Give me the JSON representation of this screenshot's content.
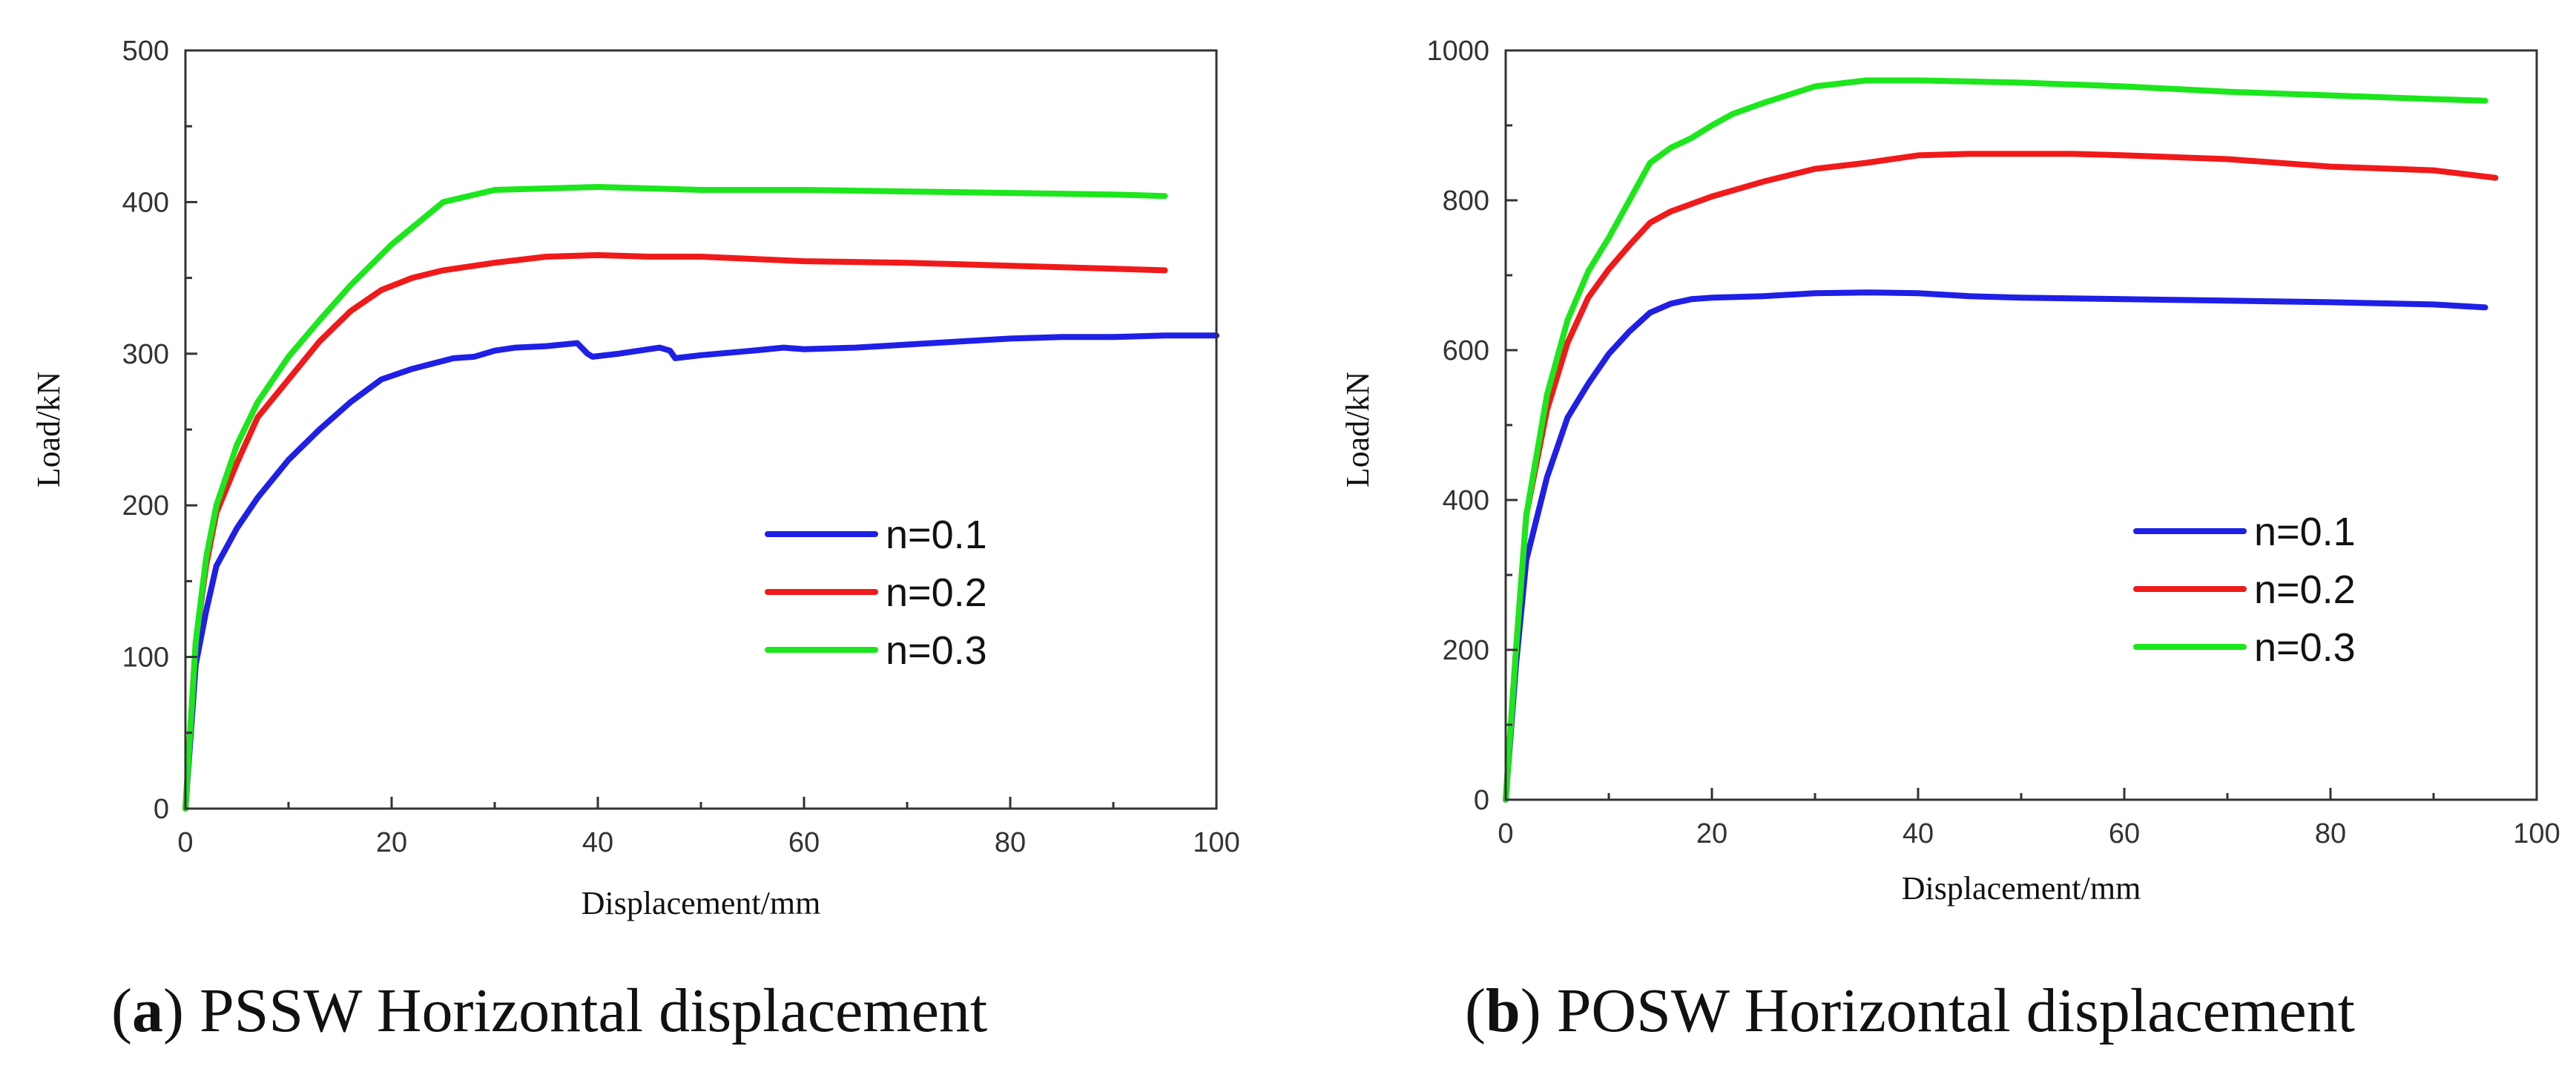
{
  "chart_data": [
    {
      "type": "line",
      "caption_letter": "a",
      "caption_text": "PSSW Horizontal displacement",
      "xlabel": "Displacement/mm",
      "ylabel": "Load/kN",
      "xlim": [
        0,
        100
      ],
      "ylim": [
        0,
        500
      ],
      "xticks": [
        0,
        20,
        40,
        60,
        80,
        100
      ],
      "yticks": [
        0,
        100,
        200,
        300,
        400,
        500
      ],
      "xtick_labels": [
        "0",
        "20",
        "40",
        "60",
        "80",
        "100"
      ],
      "ytick_labels": [
        "0",
        "100",
        "200",
        "300",
        "400",
        "500"
      ],
      "legend_position": "lower-right",
      "series": [
        {
          "name": "n=0.1",
          "color": "#1f1fe6",
          "x": [
            0,
            1,
            2,
            3,
            5,
            7,
            10,
            13,
            16,
            19,
            22,
            26,
            28,
            30,
            32,
            35,
            38,
            39,
            39.5,
            42,
            46,
            47,
            47.5,
            50,
            55,
            58,
            60,
            65,
            70,
            75,
            80,
            85,
            90,
            95,
            100
          ],
          "y": [
            0,
            95,
            130,
            160,
            185,
            205,
            230,
            250,
            268,
            283,
            290,
            297,
            298,
            302,
            304,
            305,
            307,
            300,
            298,
            300,
            304,
            302,
            297,
            299,
            302,
            304,
            303,
            304,
            306,
            308,
            310,
            311,
            311,
            312,
            312
          ]
        },
        {
          "name": "n=0.2",
          "color": "#f01a1a",
          "x": [
            0,
            1,
            2,
            3,
            5,
            7,
            10,
            13,
            16,
            19,
            22,
            25,
            30,
            35,
            40,
            45,
            50,
            60,
            70,
            80,
            90,
            95
          ],
          "y": [
            0,
            110,
            160,
            195,
            228,
            258,
            283,
            308,
            328,
            342,
            350,
            355,
            360,
            364,
            365,
            364,
            364,
            361,
            360,
            358,
            356,
            355
          ]
        },
        {
          "name": "n=0.3",
          "color": "#1ce61c",
          "x": [
            0,
            1,
            2,
            3,
            5,
            7,
            10,
            13,
            16,
            20,
            25,
            30,
            35,
            40,
            45,
            50,
            60,
            70,
            80,
            90,
            95
          ],
          "y": [
            0,
            110,
            165,
            200,
            240,
            268,
            298,
            322,
            345,
            372,
            400,
            408,
            409,
            410,
            409,
            408,
            408,
            407,
            406,
            405,
            404
          ]
        }
      ]
    },
    {
      "type": "line",
      "caption_letter": "b",
      "caption_text": "POSW Horizontal displacement",
      "xlabel": "Displacement/mm",
      "ylabel": "Load/kN",
      "xlim": [
        0,
        100
      ],
      "ylim": [
        0,
        1000
      ],
      "xticks": [
        0,
        20,
        40,
        60,
        80,
        100
      ],
      "yticks": [
        0,
        200,
        400,
        600,
        800,
        1000
      ],
      "xtick_labels": [
        "0",
        "20",
        "40",
        "60",
        "80",
        "100"
      ],
      "ytick_labels": [
        "0",
        "200",
        "400",
        "600",
        "800",
        "1000"
      ],
      "legend_position": "lower-right",
      "series": [
        {
          "name": "n=0.1",
          "color": "#1f1fe6",
          "x": [
            0,
            1,
            2,
            4,
            6,
            8,
            10,
            12,
            14,
            16,
            18,
            20,
            25,
            30,
            35,
            40,
            45,
            50,
            60,
            70,
            80,
            90,
            95
          ],
          "y": [
            0,
            180,
            320,
            430,
            510,
            555,
            595,
            625,
            650,
            662,
            668,
            670,
            672,
            676,
            677,
            676,
            672,
            670,
            668,
            666,
            664,
            661,
            657
          ]
        },
        {
          "name": "n=0.2",
          "color": "#f01a1a",
          "x": [
            0,
            1,
            2,
            4,
            6,
            8,
            10,
            12,
            14,
            16,
            18,
            20,
            25,
            30,
            35,
            40,
            45,
            50,
            55,
            60,
            70,
            80,
            90,
            96
          ],
          "y": [
            0,
            200,
            380,
            520,
            610,
            670,
            708,
            740,
            770,
            785,
            795,
            805,
            825,
            842,
            850,
            860,
            862,
            862,
            862,
            860,
            855,
            845,
            840,
            830
          ]
        },
        {
          "name": "n=0.3",
          "color": "#1ce61c",
          "x": [
            0,
            1,
            2,
            4,
            6,
            8,
            10,
            12,
            14,
            16,
            18,
            20,
            22,
            25,
            30,
            35,
            40,
            50,
            60,
            70,
            80,
            90,
            95
          ],
          "y": [
            0,
            200,
            380,
            540,
            640,
            705,
            750,
            800,
            850,
            870,
            883,
            900,
            915,
            930,
            952,
            960,
            960,
            957,
            952,
            945,
            940,
            935,
            933
          ]
        }
      ]
    }
  ]
}
